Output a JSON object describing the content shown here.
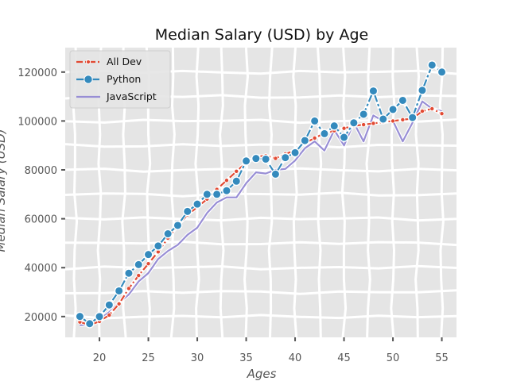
{
  "chart_data": {
    "type": "line",
    "title": "Median Salary (USD) by Age",
    "xlabel": "Ages",
    "ylabel": "Median Salary (USD)",
    "x": [
      18,
      19,
      20,
      21,
      22,
      23,
      24,
      25,
      26,
      27,
      28,
      29,
      30,
      31,
      32,
      33,
      34,
      35,
      36,
      37,
      38,
      39,
      40,
      41,
      42,
      43,
      44,
      45,
      46,
      47,
      48,
      49,
      50,
      51,
      52,
      53,
      54,
      55
    ],
    "xlim": [
      16.5,
      56.5
    ],
    "ylim": [
      11500,
      130000
    ],
    "xticks": [
      20,
      25,
      30,
      35,
      40,
      45,
      50,
      55
    ],
    "yticks": [
      20000,
      40000,
      60000,
      80000,
      100000,
      120000
    ],
    "grid": true,
    "legend_position": "top-left",
    "series": [
      {
        "name": "All Dev",
        "style": "dashed-dot",
        "color": "#e24a33",
        "values": [
          17784,
          16500,
          18012,
          20628,
          25206,
          31476,
          36813,
          41630,
          46458,
          52051,
          57284,
          61597,
          64785,
          68030,
          72020,
          75700,
          79400,
          83000,
          85400,
          85800,
          84700,
          86500,
          88000,
          91000,
          93000,
          95000,
          96000,
          97000,
          98000,
          98500,
          99000,
          99500,
          100000,
          100500,
          101000,
          104000,
          105000,
          103000
        ]
      },
      {
        "name": "Python",
        "style": "dashed-dot-large",
        "color": "#348abd",
        "values": [
          20046,
          17100,
          20000,
          24744,
          30500,
          37732,
          41247,
          45372,
          48876,
          53850,
          57287,
          63016,
          65998,
          70003,
          70000,
          71496,
          75370,
          83640,
          84666,
          84392,
          78254,
          85000,
          87038,
          91991,
          100000,
          94796,
          97962,
          93302,
          99240,
          102736,
          112285,
          100771,
          104708,
          108423,
          101407,
          112542,
          122870,
          120000
        ]
      },
      {
        "name": "JavaScript",
        "style": "solid",
        "color": "#988ed5",
        "values": [
          16446,
          16791,
          18942,
          21780,
          25704,
          29000,
          34372,
          37810,
          43515,
          46823,
          49293,
          53437,
          56373,
          62375,
          66674,
          68745,
          68746,
          74583,
          79000,
          78508,
          79996,
          80403,
          83820,
          88833,
          91660,
          87892,
          96243,
          90000,
          99313,
          91660,
          102264,
          100000,
          100000,
          91660,
          99240,
          108000,
          105000,
          104000
        ]
      }
    ]
  }
}
